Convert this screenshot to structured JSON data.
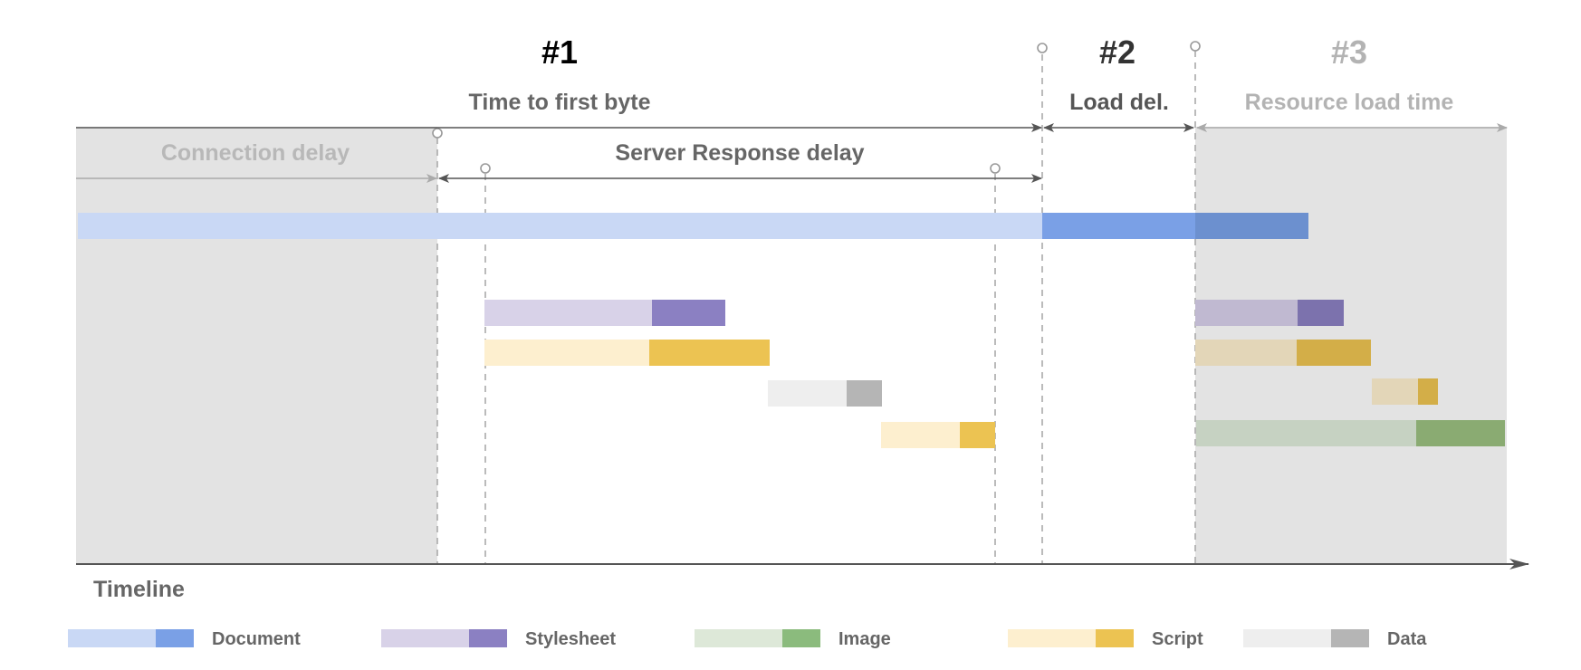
{
  "phases": [
    {
      "id": "p1",
      "number": "#1",
      "label": "Time to first byte",
      "number_color": "#000000",
      "label_color": "#666666"
    },
    {
      "id": "p2",
      "number": "#2",
      "label": "Load del.",
      "number_color": "#333333",
      "label_color": "#555555"
    },
    {
      "id": "p3",
      "number": "#3",
      "label": "Resource load time",
      "number_color": "#b3b3b3",
      "label_color": "#b3b3b3"
    }
  ],
  "sub_phases": {
    "connection": "Connection delay",
    "server_response": "Server Response delay"
  },
  "axis_label": "Timeline",
  "legend": [
    {
      "name": "Document",
      "light": "#c9d8f5",
      "dark": "#7aa0e6"
    },
    {
      "name": "Stylesheet",
      "light": "#d8d2e8",
      "dark": "#8b80c2"
    },
    {
      "name": "Image",
      "light": "#dde8d8",
      "dark": "#8bbb7d"
    },
    {
      "name": "Script",
      "light": "#fdefcf",
      "dark": "#ecc352"
    },
    {
      "name": "Data",
      "light": "#eeeeee",
      "dark": "#b5b5b5"
    }
  ],
  "colors": {
    "shade": "#e3e3e3",
    "axis": "#555555",
    "dashed": "#aaaaaa",
    "arrow_dark": "#555555",
    "arrow_light": "#aaaaaa",
    "doc_load": "#7aa0e6",
    "doc_load_shaded": "#6c90cf",
    "css_light_shaded": "#c0b9d1",
    "css_dark_shaded": "#7c72ad",
    "js_light_shaded": "#e3d6b8",
    "js_dark_shaded": "#d3ae48",
    "img_light_shaded": "#c6d2c2",
    "img_dark_shaded": "#8aab72"
  }
}
